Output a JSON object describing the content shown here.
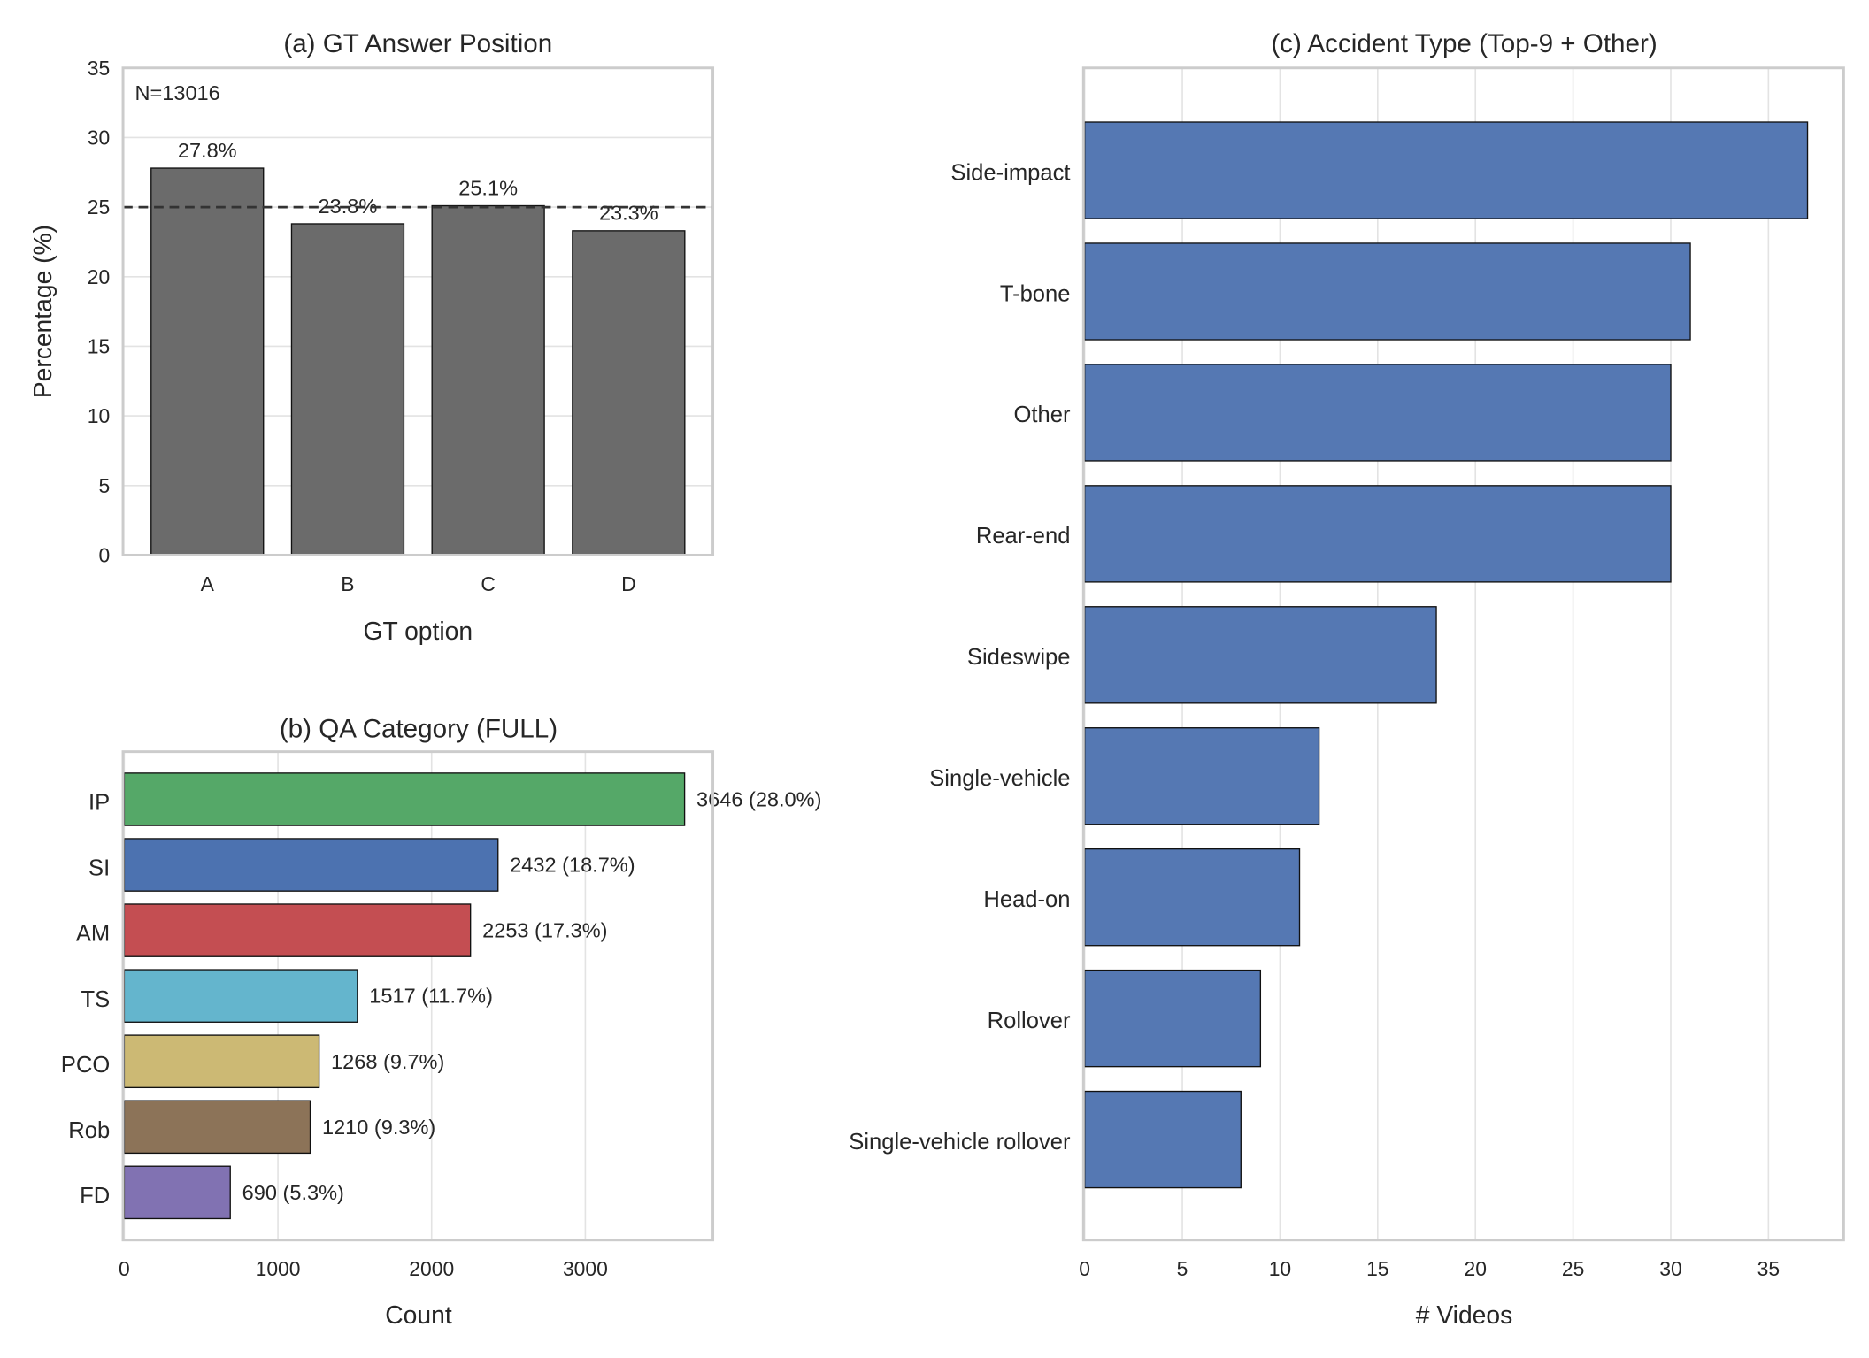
{
  "chart_data": [
    {
      "type": "bar",
      "title": "(a) GT Answer Position",
      "xlabel": "GT option",
      "ylabel": "Percentage (%)",
      "annotation": "N=13016",
      "categories": [
        "A",
        "B",
        "C",
        "D"
      ],
      "values": [
        27.8,
        23.8,
        25.1,
        23.3
      ],
      "data_labels": [
        "27.8%",
        "23.8%",
        "25.1%",
        "23.3%"
      ],
      "reference_line": 25,
      "ylim": [
        0,
        35
      ],
      "yticks": [
        0,
        5,
        10,
        15,
        20,
        25,
        30,
        35
      ],
      "grid": true,
      "color": "#6b6b6b"
    },
    {
      "type": "bar",
      "orientation": "horizontal",
      "title": "(b) QA Category (FULL)",
      "xlabel": "Count",
      "ylabel": "",
      "categories": [
        "IP",
        "SI",
        "AM",
        "TS",
        "PCO",
        "Rob",
        "FD"
      ],
      "values": [
        3646,
        2432,
        2253,
        1517,
        1268,
        1210,
        690
      ],
      "data_labels": [
        "3646 (28.0%)",
        "2432 (18.7%)",
        "2253 (17.3%)",
        "1517 (11.7%)",
        "1268 (9.7%)",
        "1210 (9.3%)",
        "690 (5.3%)"
      ],
      "colors": [
        "#55a868",
        "#4c72b0",
        "#c44e52",
        "#64b5cd",
        "#ccb974",
        "#8c7358",
        "#8172b2"
      ],
      "xlim": [
        0,
        3830
      ],
      "xticks": [
        0,
        1000,
        2000,
        3000
      ],
      "grid": true
    },
    {
      "type": "bar",
      "orientation": "horizontal",
      "title": "(c) Accident Type (Top-9 + Other)",
      "xlabel": "# Videos",
      "ylabel": "",
      "categories": [
        "Side-impact",
        "T-bone",
        "Other",
        "Rear-end",
        "Sideswipe",
        "Single-vehicle",
        "Head-on",
        "Rollover",
        "Single-vehicle rollover"
      ],
      "values": [
        37,
        31,
        30,
        30,
        18,
        12,
        11,
        9,
        8
      ],
      "xlim": [
        0,
        38.85
      ],
      "xticks": [
        0,
        5,
        10,
        15,
        20,
        25,
        30,
        35
      ],
      "grid": true,
      "color": "#5578b3"
    }
  ]
}
